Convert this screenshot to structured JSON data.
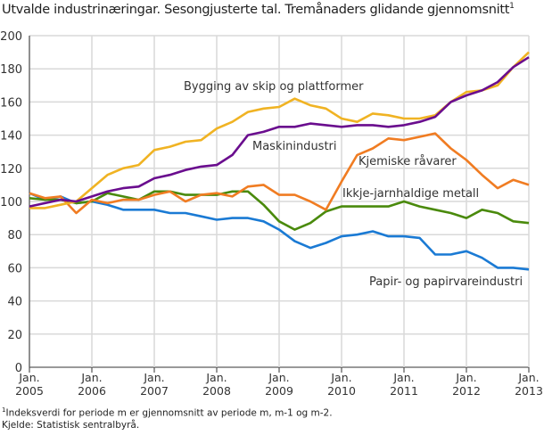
{
  "chart_data": {
    "type": "line",
    "title": "Utvalde industrinæringar. Sesongjusterte tal. Tremånaders glidande gjennomsnitt",
    "title_footnote_mark": "1",
    "xlabel": "",
    "ylabel": "",
    "ylim": [
      0,
      200
    ],
    "yticks": [
      0,
      20,
      40,
      60,
      80,
      100,
      120,
      140,
      160,
      180,
      200
    ],
    "xlim": [
      2005,
      2013
    ],
    "xticks": [
      {
        "top": "Jan.",
        "bottom": "2005"
      },
      {
        "top": "Jan.",
        "bottom": "2006"
      },
      {
        "top": "Jan.",
        "bottom": "2007"
      },
      {
        "top": "Jan.",
        "bottom": "2008"
      },
      {
        "top": "Jan.",
        "bottom": "2009"
      },
      {
        "top": "Jan.",
        "bottom": "2010"
      },
      {
        "top": "Jan.",
        "bottom": "2011"
      },
      {
        "top": "Jan.",
        "bottom": "2012"
      },
      {
        "top": "Jan.",
        "bottom": "2013"
      }
    ],
    "grid": true,
    "x_step_years": 0.25,
    "series": [
      {
        "name": "Bygging av skip og plattformer",
        "color": "#f0b323",
        "values": [
          96,
          96,
          98,
          100,
          108,
          116,
          120,
          122,
          131,
          133,
          136,
          137,
          144,
          148,
          154,
          156,
          157,
          162,
          158,
          156,
          150,
          148,
          153,
          152,
          150,
          150,
          152,
          160,
          166,
          167,
          170,
          181,
          190
        ]
      },
      {
        "name": "Maskinindustri",
        "color": "#6a0d8e",
        "values": [
          97,
          99,
          101,
          100,
          103,
          106,
          108,
          109,
          114,
          116,
          119,
          121,
          122,
          128,
          140,
          142,
          145,
          145,
          147,
          146,
          145,
          146,
          146,
          145,
          146,
          148,
          151,
          160,
          164,
          167,
          172,
          181,
          187
        ]
      },
      {
        "name": "Kjemiske råvarer",
        "color": "#f07c22",
        "values": [
          105,
          102,
          103,
          93,
          101,
          99,
          101,
          101,
          104,
          106,
          100,
          104,
          105,
          103,
          109,
          110,
          104,
          104,
          100,
          95,
          112,
          128,
          132,
          138,
          137,
          139,
          141,
          132,
          125,
          116,
          108,
          113,
          110
        ]
      },
      {
        "name": "Ikkje-jarnhaldige metall",
        "color": "#4a8a0c",
        "values": [
          102,
          101,
          101,
          99,
          100,
          105,
          103,
          101,
          106,
          106,
          104,
          104,
          104,
          106,
          106,
          98,
          88,
          83,
          87,
          94,
          97,
          97,
          97,
          97,
          100,
          97,
          95,
          93,
          90,
          95,
          93,
          88,
          87
        ]
      },
      {
        "name": "Papir- og papirvareindustri",
        "color": "#1a7ad4",
        "values": [
          105,
          101,
          103,
          99,
          100,
          98,
          95,
          95,
          95,
          93,
          93,
          91,
          89,
          90,
          90,
          88,
          83,
          76,
          72,
          75,
          79,
          80,
          82,
          79,
          79,
          78,
          68,
          68,
          70,
          66,
          60,
          60,
          59
        ]
      }
    ]
  },
  "footnotes": {
    "note_mark": "1",
    "note": "Indeksverdi for periode m er gjennomsnitt av periode m, m-1 og m-2.",
    "source": "Kjelde: Statistisk sentralbyrå."
  }
}
